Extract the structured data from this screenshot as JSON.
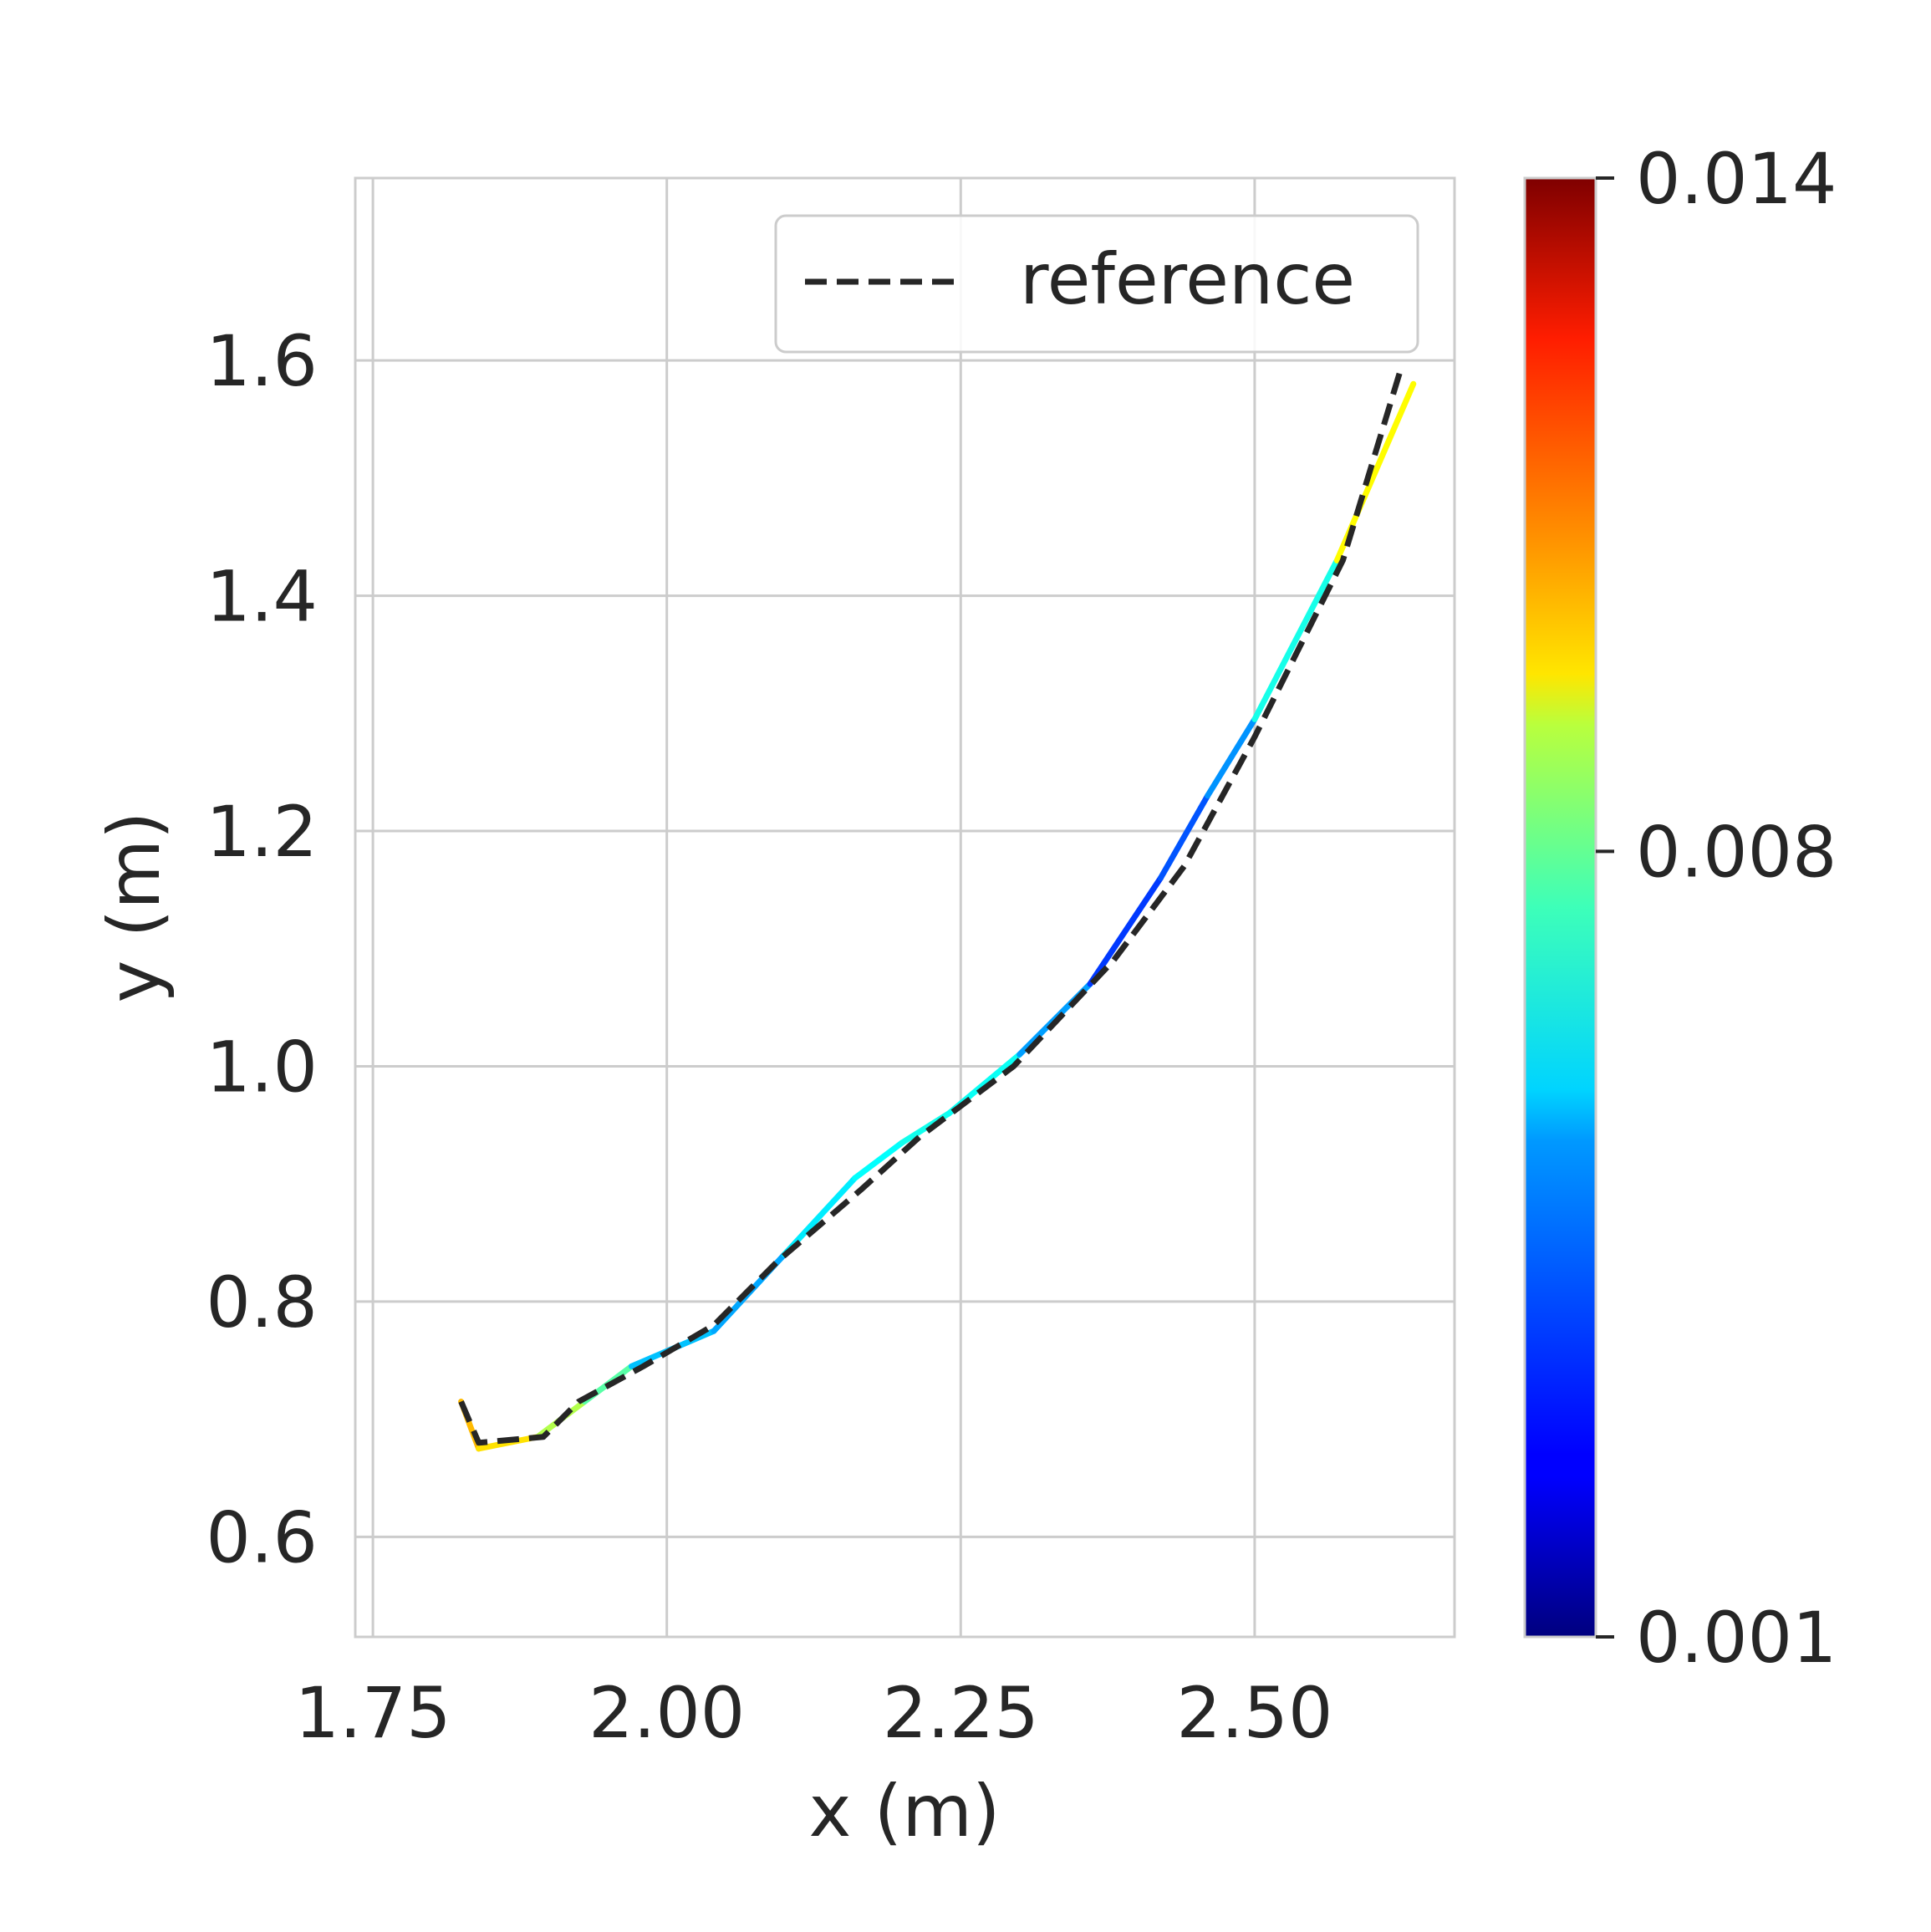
{
  "chart_data": {
    "type": "line",
    "title": "",
    "xlabel": "x (m)",
    "ylabel": "y (m)",
    "xlim": [
      1.735,
      2.67
    ],
    "ylim": [
      0.515,
      1.755
    ],
    "xticks": [
      1.75,
      2.0,
      2.25,
      2.5
    ],
    "xtick_labels": [
      "1.75",
      "2.00",
      "2.25",
      "2.50"
    ],
    "yticks": [
      0.6,
      0.8,
      1.0,
      1.2,
      1.4,
      1.6
    ],
    "ytick_labels": [
      "0.6",
      "0.8",
      "1.0",
      "1.2",
      "1.4",
      "1.6"
    ],
    "grid": true,
    "legend": {
      "placement": "top-right",
      "entries": [
        "reference"
      ]
    },
    "colorbar": {
      "colormap": "jet",
      "min": 0.001,
      "max": 0.014,
      "ticks": [
        0.001,
        0.008,
        0.014
      ],
      "tick_labels": [
        "0.001",
        "0.008",
        "0.014"
      ]
    },
    "series": [
      {
        "name": "reference",
        "style": "dashed",
        "color": "#262626",
        "x": [
          1.825,
          1.84,
          1.895,
          1.925,
          1.98,
          2.04,
          2.095,
          2.165,
          2.215,
          2.295,
          2.38,
          2.44,
          2.5,
          2.575,
          2.625
        ],
        "y": [
          0.715,
          0.68,
          0.685,
          0.715,
          0.745,
          0.78,
          0.835,
          0.895,
          0.94,
          1.0,
          1.09,
          1.17,
          1.28,
          1.43,
          1.595
        ]
      },
      {
        "name": "",
        "style": "colormapped",
        "x": [
          1.825,
          1.84,
          1.89,
          1.93,
          1.97,
          2.04,
          2.1,
          2.16,
          2.2,
          2.24,
          2.3,
          2.36,
          2.42,
          2.46,
          2.5,
          2.57,
          2.635
        ],
        "y": [
          0.715,
          0.675,
          0.685,
          0.715,
          0.745,
          0.775,
          0.84,
          0.905,
          0.935,
          0.96,
          1.01,
          1.07,
          1.16,
          1.23,
          1.295,
          1.43,
          1.58
        ],
        "c": [
          0.0095,
          0.0105,
          0.0085,
          0.0078,
          0.0062,
          0.004,
          0.0055,
          0.0058,
          0.006,
          0.0062,
          0.0058,
          0.0035,
          0.0032,
          0.0042,
          0.0048,
          0.0075,
          0.0108
        ]
      }
    ]
  }
}
